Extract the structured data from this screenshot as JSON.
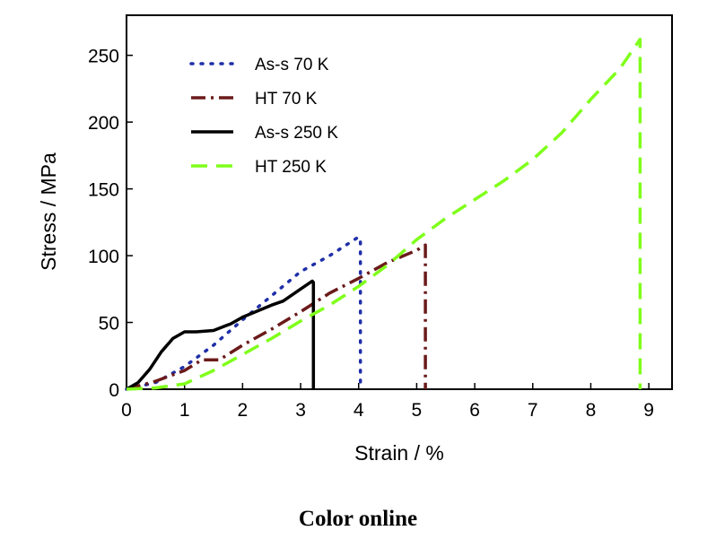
{
  "caption": "Color online",
  "chart_data": {
    "type": "line",
    "xlabel": "Strain / %",
    "ylabel": "Stress / MPa",
    "xlim": [
      0,
      9.4
    ],
    "ylim": [
      0,
      280
    ],
    "xticks": [
      0,
      1,
      2,
      3,
      4,
      5,
      6,
      7,
      8,
      9
    ],
    "yticks": [
      0,
      50,
      100,
      150,
      200,
      250
    ],
    "grid": false,
    "legend_position": "top-left",
    "series": [
      {
        "name": "As-s 70 K",
        "color": "#1f2fa8",
        "dash": "dotted",
        "x": [
          0,
          0.5,
          1.0,
          1.5,
          2.0,
          2.5,
          3.0,
          3.5,
          4.0,
          4.03,
          4.03
        ],
        "y": [
          0,
          5,
          17,
          33,
          52,
          70,
          88,
          100,
          114,
          112,
          0
        ]
      },
      {
        "name": "HT 70 K",
        "color": "#6b1a1a",
        "dash": "dashdot",
        "x": [
          0,
          0.5,
          1.0,
          1.3,
          1.6,
          2.0,
          2.5,
          3.0,
          3.5,
          4.0,
          4.5,
          5.0,
          5.15,
          5.15
        ],
        "y": [
          0,
          6,
          14,
          22,
          22,
          33,
          45,
          58,
          72,
          83,
          95,
          104,
          108,
          0
        ]
      },
      {
        "name": "As-s 250 K",
        "color": "#000000",
        "dash": "solid",
        "x": [
          0,
          0.2,
          0.4,
          0.6,
          0.8,
          1.0,
          1.2,
          1.5,
          1.8,
          2.0,
          2.5,
          2.7,
          3.0,
          3.2,
          3.22,
          3.22
        ],
        "y": [
          0,
          5,
          15,
          28,
          38,
          43,
          43,
          44,
          49,
          54,
          63,
          66,
          75,
          81,
          80,
          0
        ]
      },
      {
        "name": "HT 250 K",
        "color": "#7fff1a",
        "dash": "dashed",
        "x": [
          0,
          0.5,
          1.0,
          1.5,
          2.0,
          2.5,
          3.0,
          3.5,
          4.0,
          4.5,
          5.0,
          5.5,
          6.0,
          6.5,
          7.0,
          7.5,
          8.0,
          8.5,
          8.85,
          8.85
        ],
        "y": [
          0,
          1,
          4,
          14,
          26,
          38,
          51,
          63,
          77,
          93,
          112,
          128,
          142,
          156,
          172,
          192,
          217,
          240,
          262,
          0
        ]
      }
    ]
  }
}
